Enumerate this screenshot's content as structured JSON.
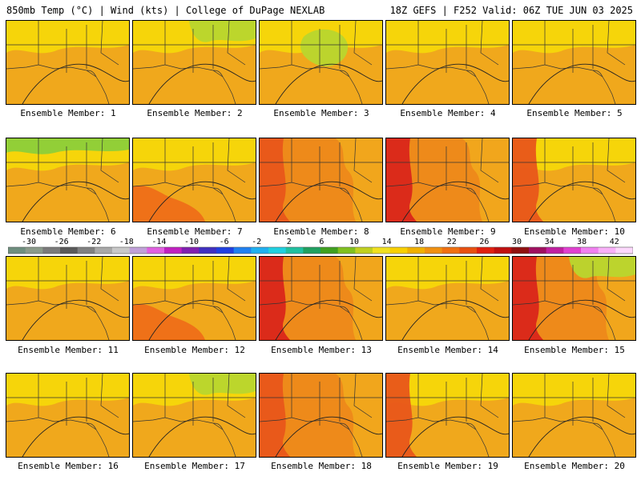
{
  "header": {
    "left": "850mb Temp (°C) | Wind (kts) | College of DuPage NEXLAB",
    "right": "18Z GEFS | F252 Valid: 06Z TUE JUN 03 2025"
  },
  "members": [
    {
      "caption": "Ensemble Member: 1",
      "base": "#f0a81c",
      "blobs": [
        {
          "color": "#f6d70a",
          "kind": "north"
        }
      ]
    },
    {
      "caption": "Ensemble Member: 2",
      "base": "#f0a81c",
      "blobs": [
        {
          "color": "#f6d70a",
          "kind": "north"
        },
        {
          "color": "#b8d62e",
          "kind": "ne"
        }
      ]
    },
    {
      "caption": "Ensemble Member: 3",
      "base": "#f0a81c",
      "blobs": [
        {
          "color": "#f6d70a",
          "kind": "north"
        },
        {
          "color": "#b8d62e",
          "kind": "center"
        }
      ]
    },
    {
      "caption": "Ensemble Member: 4",
      "base": "#f0a81c",
      "blobs": [
        {
          "color": "#f6d70a",
          "kind": "north"
        }
      ]
    },
    {
      "caption": "Ensemble Member: 5",
      "base": "#f0a81c",
      "blobs": [
        {
          "color": "#f6d70a",
          "kind": "north"
        }
      ]
    },
    {
      "caption": "Ensemble Member: 6",
      "base": "#f0a81c",
      "blobs": [
        {
          "color": "#f6d70a",
          "kind": "north"
        },
        {
          "color": "#8ccf3a",
          "kind": "top"
        }
      ]
    },
    {
      "caption": "Ensemble Member: 7",
      "base": "#f0a81c",
      "blobs": [
        {
          "color": "#f6d70a",
          "kind": "north"
        },
        {
          "color": "#ee6e18",
          "kind": "sw"
        }
      ]
    },
    {
      "caption": "Ensemble Member: 8",
      "base": "#ee8a1a",
      "blobs": [
        {
          "color": "#f0a81c",
          "kind": "east"
        },
        {
          "color": "#e8561a",
          "kind": "west"
        }
      ]
    },
    {
      "caption": "Ensemble Member: 9",
      "base": "#ee8a1a",
      "blobs": [
        {
          "color": "#f0a81c",
          "kind": "east"
        },
        {
          "color": "#d9261a",
          "kind": "west"
        }
      ]
    },
    {
      "caption": "Ensemble Member: 10",
      "base": "#f0a81c",
      "blobs": [
        {
          "color": "#f6d70a",
          "kind": "north"
        },
        {
          "color": "#e8561a",
          "kind": "west"
        }
      ]
    },
    {
      "caption": "Ensemble Member: 11",
      "base": "#f0a81c",
      "blobs": [
        {
          "color": "#f6d70a",
          "kind": "north"
        }
      ]
    },
    {
      "caption": "Ensemble Member: 12",
      "base": "#f0a81c",
      "blobs": [
        {
          "color": "#f6d70a",
          "kind": "north"
        },
        {
          "color": "#ee6e18",
          "kind": "sw"
        }
      ]
    },
    {
      "caption": "Ensemble Member: 13",
      "base": "#ee8a1a",
      "blobs": [
        {
          "color": "#f0a81c",
          "kind": "east"
        },
        {
          "color": "#d9261a",
          "kind": "west"
        }
      ]
    },
    {
      "caption": "Ensemble Member: 14",
      "base": "#f0a81c",
      "blobs": [
        {
          "color": "#f6d70a",
          "kind": "north"
        }
      ]
    },
    {
      "caption": "Ensemble Member: 15",
      "base": "#ee8a1a",
      "blobs": [
        {
          "color": "#f0a81c",
          "kind": "east"
        },
        {
          "color": "#d9261a",
          "kind": "west"
        },
        {
          "color": "#b8d62e",
          "kind": "ne"
        }
      ]
    },
    {
      "caption": "Ensemble Member: 16",
      "base": "#f0a81c",
      "blobs": [
        {
          "color": "#f6d70a",
          "kind": "north"
        }
      ]
    },
    {
      "caption": "Ensemble Member: 17",
      "base": "#f0a81c",
      "blobs": [
        {
          "color": "#f6d70a",
          "kind": "north"
        },
        {
          "color": "#b8d62e",
          "kind": "ne"
        }
      ]
    },
    {
      "caption": "Ensemble Member: 18",
      "base": "#ee8a1a",
      "blobs": [
        {
          "color": "#f0a81c",
          "kind": "east"
        },
        {
          "color": "#e8561a",
          "kind": "west"
        }
      ]
    },
    {
      "caption": "Ensemble Member: 19",
      "base": "#f0a81c",
      "blobs": [
        {
          "color": "#f6d70a",
          "kind": "north"
        },
        {
          "color": "#e8561a",
          "kind": "west"
        }
      ]
    },
    {
      "caption": "Ensemble Member: 20",
      "base": "#f0a81c",
      "blobs": [
        {
          "color": "#f6d70a",
          "kind": "north"
        }
      ]
    }
  ],
  "colorbar": {
    "labels": [
      "-30",
      "-26",
      "-22",
      "-18",
      "-14",
      "-10",
      "-6",
      "-2",
      "2",
      "6",
      "10",
      "14",
      "18",
      "22",
      "26",
      "30",
      "34",
      "38",
      "42"
    ],
    "colors": [
      "#6e8e7e",
      "#8a9a8a",
      "#7a7a7a",
      "#5a5a5a",
      "#808080",
      "#a8a8a8",
      "#c8c8c8",
      "#c0a0d8",
      "#e060e0",
      "#c020c0",
      "#8020b0",
      "#4030c0",
      "#2040e0",
      "#2080f0",
      "#20b0f0",
      "#20d0e0",
      "#20c0a0",
      "#20a060",
      "#40a020",
      "#80c020",
      "#c0d020",
      "#f0e020",
      "#f8d000",
      "#f0b000",
      "#f09010",
      "#f07010",
      "#e85010",
      "#e02010",
      "#c01010",
      "#901010",
      "#a01060",
      "#c020a0",
      "#e040d0",
      "#f080f0",
      "#f8b0f8",
      "#fcd8fc"
    ]
  }
}
